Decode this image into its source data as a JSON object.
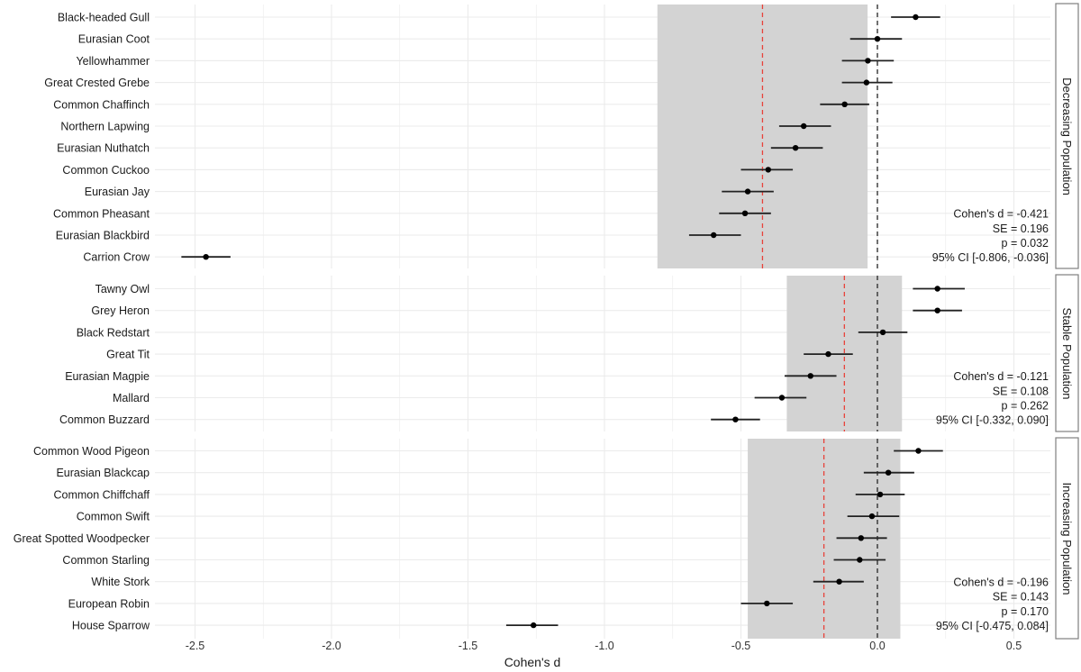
{
  "chart_data": {
    "type": "forest",
    "xlabel": "Cohen's d",
    "xlim": [
      -2.65,
      0.64
    ],
    "xticks": [
      -2.5,
      -2.0,
      -1.5,
      -1.0,
      -0.5,
      0.0,
      0.5
    ],
    "xtick_labels": [
      "-2.5",
      "-2.0",
      "-1.5",
      "-1.0",
      "-0.5",
      "0.0",
      "0.5"
    ],
    "reference_line": 0.0,
    "grid": true,
    "colors": {
      "point": "#000000",
      "shade": "#d3d3d3",
      "mean_line": "#e8423a",
      "zero_line": "#333333",
      "grid": "#ebebeb"
    },
    "panels": [
      {
        "strip_label": "Decreasing Population",
        "pooled": {
          "d": -0.421,
          "ci": [
            -0.806,
            -0.036
          ]
        },
        "stats": [
          "Cohen's d = -0.421",
          "SE = 0.196",
          "p = 0.032",
          "95% CI [-0.806, -0.036]"
        ],
        "species": [
          {
            "name": "Black-headed Gull",
            "d": 0.14,
            "lo": 0.05,
            "hi": 0.23
          },
          {
            "name": "Eurasian Coot",
            "d": 0.0,
            "lo": -0.1,
            "hi": 0.09
          },
          {
            "name": "Yellowhammer",
            "d": -0.035,
            "lo": -0.13,
            "hi": 0.06
          },
          {
            "name": "Great Crested Grebe",
            "d": -0.04,
            "lo": -0.13,
            "hi": 0.055
          },
          {
            "name": "Common Chaffinch",
            "d": -0.12,
            "lo": -0.21,
            "hi": -0.03
          },
          {
            "name": "Northern Lapwing",
            "d": -0.27,
            "lo": -0.36,
            "hi": -0.17
          },
          {
            "name": "Eurasian Nuthatch",
            "d": -0.3,
            "lo": -0.39,
            "hi": -0.2
          },
          {
            "name": "Common Cuckoo",
            "d": -0.4,
            "lo": -0.5,
            "hi": -0.31
          },
          {
            "name": "Eurasian Jay",
            "d": -0.475,
            "lo": -0.57,
            "hi": -0.38
          },
          {
            "name": "Common Pheasant",
            "d": -0.485,
            "lo": -0.58,
            "hi": -0.39
          },
          {
            "name": "Eurasian Blackbird",
            "d": -0.6,
            "lo": -0.69,
            "hi": -0.5
          },
          {
            "name": "Carrion Crow",
            "d": -2.46,
            "lo": -2.55,
            "hi": -2.37
          }
        ]
      },
      {
        "strip_label": "Stable Population",
        "pooled": {
          "d": -0.121,
          "ci": [
            -0.332,
            0.09
          ]
        },
        "stats": [
          "Cohen's d = -0.121",
          "SE = 0.108",
          "p = 0.262",
          "95% CI [-0.332, 0.090]"
        ],
        "species": [
          {
            "name": "Tawny Owl",
            "d": 0.22,
            "lo": 0.13,
            "hi": 0.32
          },
          {
            "name": "Grey Heron",
            "d": 0.22,
            "lo": 0.13,
            "hi": 0.31
          },
          {
            "name": "Black Redstart",
            "d": 0.02,
            "lo": -0.07,
            "hi": 0.11
          },
          {
            "name": "Great Tit",
            "d": -0.18,
            "lo": -0.27,
            "hi": -0.09
          },
          {
            "name": "Eurasian Magpie",
            "d": -0.245,
            "lo": -0.34,
            "hi": -0.15
          },
          {
            "name": "Mallard",
            "d": -0.35,
            "lo": -0.45,
            "hi": -0.26
          },
          {
            "name": "Common Buzzard",
            "d": -0.52,
            "lo": -0.61,
            "hi": -0.43
          }
        ]
      },
      {
        "strip_label": "Increasing Population",
        "pooled": {
          "d": -0.196,
          "ci": [
            -0.475,
            0.084
          ]
        },
        "stats": [
          "Cohen's d = -0.196",
          "SE = 0.143",
          "p = 0.170",
          "95% CI [-0.475, 0.084]"
        ],
        "species": [
          {
            "name": "Common Wood Pigeon",
            "d": 0.15,
            "lo": 0.06,
            "hi": 0.24
          },
          {
            "name": "Eurasian Blackcap",
            "d": 0.04,
            "lo": -0.05,
            "hi": 0.135
          },
          {
            "name": "Common Chiffchaff",
            "d": 0.01,
            "lo": -0.08,
            "hi": 0.1
          },
          {
            "name": "Common Swift",
            "d": -0.02,
            "lo": -0.11,
            "hi": 0.08
          },
          {
            "name": "Great Spotted Woodpecker",
            "d": -0.06,
            "lo": -0.15,
            "hi": 0.035
          },
          {
            "name": "Common Starling",
            "d": -0.065,
            "lo": -0.16,
            "hi": 0.03
          },
          {
            "name": "White Stork",
            "d": -0.14,
            "lo": -0.235,
            "hi": -0.05
          },
          {
            "name": "European Robin",
            "d": -0.405,
            "lo": -0.5,
            "hi": -0.31
          },
          {
            "name": "House Sparrow",
            "d": -1.26,
            "lo": -1.36,
            "hi": -1.17
          }
        ]
      }
    ]
  }
}
